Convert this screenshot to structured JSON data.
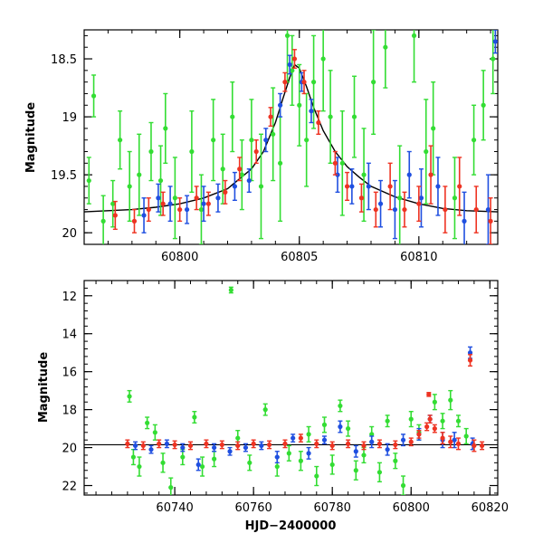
{
  "colors": {
    "green": "#33dd33",
    "blue": "#1f4fe0",
    "red": "#ee3322",
    "model": "#000000"
  },
  "chart_data": [
    {
      "type": "scatter",
      "title": "",
      "xlabel": "",
      "ylabel": "Magnitude",
      "xlim": [
        60796,
        60813.3
      ],
      "ylim": [
        20.1,
        18.25
      ],
      "y_inverted": true,
      "xticks_major": [
        60800,
        60805,
        60810
      ],
      "xticks_minor_step": 1,
      "yticks_major": [
        18.5,
        19,
        19.5,
        20
      ],
      "yticks_minor_step": 0.1,
      "grid": false,
      "model_curve": {
        "name": "",
        "x": [
          60796,
          60797,
          60798,
          60799,
          60800,
          60801,
          60802,
          60803,
          60803.5,
          60804,
          60804.3,
          60804.6,
          60804.8,
          60805,
          60805.3,
          60805.6,
          60806,
          60806.5,
          60807,
          60807.5,
          60808,
          60809,
          60810,
          60811,
          60812,
          60813.3
        ],
        "y": [
          19.82,
          19.81,
          19.8,
          19.78,
          19.75,
          19.7,
          19.62,
          19.45,
          19.3,
          19.05,
          18.85,
          18.66,
          18.55,
          18.58,
          18.74,
          18.92,
          19.12,
          19.3,
          19.43,
          19.52,
          19.6,
          19.69,
          19.75,
          19.79,
          19.81,
          19.82
        ]
      },
      "series": [
        {
          "color": "green",
          "points": [
            [
              60796.2,
              19.55,
              0.2
            ],
            [
              60796.4,
              18.82,
              0.18
            ],
            [
              60796.8,
              19.9,
              0.22
            ],
            [
              60797.2,
              19.75,
              0.2
            ],
            [
              60797.5,
              19.2,
              0.25
            ],
            [
              60797.9,
              19.6,
              0.3
            ],
            [
              60798.3,
              19.5,
              0.35
            ],
            [
              60798.8,
              19.3,
              0.25
            ],
            [
              60799.2,
              19.55,
              0.3
            ],
            [
              60799.4,
              19.1,
              0.3
            ],
            [
              60799.8,
              19.7,
              0.35
            ],
            [
              60800.5,
              19.3,
              0.35
            ],
            [
              60800.9,
              19.8,
              0.3
            ],
            [
              60801.4,
              19.2,
              0.35
            ],
            [
              60801.8,
              19.45,
              0.3
            ],
            [
              60802.2,
              19.0,
              0.3
            ],
            [
              60802.6,
              19.5,
              0.3
            ],
            [
              60803.0,
              19.2,
              0.35
            ],
            [
              60803.4,
              19.6,
              0.45
            ],
            [
              60803.9,
              19.15,
              0.4
            ],
            [
              60804.2,
              19.4,
              0.5
            ],
            [
              60804.5,
              18.3,
              0.4
            ],
            [
              60804.7,
              18.6,
              0.3
            ],
            [
              60805.0,
              18.9,
              0.35
            ],
            [
              60805.3,
              19.2,
              0.4
            ],
            [
              60805.6,
              18.7,
              0.4
            ],
            [
              60806.0,
              18.5,
              0.45
            ],
            [
              60806.3,
              19.0,
              0.4
            ],
            [
              60806.8,
              19.4,
              0.45
            ],
            [
              60807.3,
              19.0,
              0.35
            ],
            [
              60807.7,
              19.5,
              0.4
            ],
            [
              60808.1,
              18.7,
              0.45
            ],
            [
              60808.6,
              18.4,
              0.35
            ],
            [
              60809.2,
              19.7,
              0.45
            ],
            [
              60809.8,
              18.3,
              0.4
            ],
            [
              60810.3,
              19.3,
              0.45
            ],
            [
              60810.6,
              19.1,
              0.4
            ],
            [
              60811.5,
              19.7,
              0.35
            ],
            [
              60812.3,
              19.2,
              0.3
            ],
            [
              60812.7,
              18.9,
              0.3
            ],
            [
              60813.1,
              18.5,
              0.3
            ]
          ]
        },
        {
          "color": "blue",
          "points": [
            [
              60798.5,
              19.85,
              0.15
            ],
            [
              60799.1,
              19.7,
              0.12
            ],
            [
              60799.6,
              19.75,
              0.15
            ],
            [
              60800.3,
              19.8,
              0.12
            ],
            [
              60801.0,
              19.75,
              0.15
            ],
            [
              60801.6,
              19.7,
              0.12
            ],
            [
              60802.3,
              19.6,
              0.12
            ],
            [
              60802.9,
              19.55,
              0.1
            ],
            [
              60803.6,
              19.2,
              0.1
            ],
            [
              60804.2,
              18.9,
              0.1
            ],
            [
              60804.6,
              18.55,
              0.08
            ],
            [
              60805.1,
              18.7,
              0.08
            ],
            [
              60805.5,
              18.95,
              0.1
            ],
            [
              60806.6,
              19.5,
              0.15
            ],
            [
              60807.2,
              19.6,
              0.15
            ],
            [
              60807.9,
              19.6,
              0.2
            ],
            [
              60808.4,
              19.75,
              0.2
            ],
            [
              60809.0,
              19.8,
              0.25
            ],
            [
              60809.6,
              19.5,
              0.2
            ],
            [
              60810.1,
              19.7,
              0.25
            ],
            [
              60810.8,
              19.6,
              0.25
            ],
            [
              60811.9,
              19.9,
              0.25
            ],
            [
              60812.9,
              19.8,
              0.3
            ],
            [
              60813.2,
              18.35,
              0.1
            ]
          ]
        },
        {
          "color": "red",
          "points": [
            [
              60797.3,
              19.85,
              0.12
            ],
            [
              60798.1,
              19.9,
              0.1
            ],
            [
              60798.7,
              19.8,
              0.1
            ],
            [
              60799.3,
              19.75,
              0.1
            ],
            [
              60800.0,
              19.8,
              0.1
            ],
            [
              60800.7,
              19.7,
              0.1
            ],
            [
              60801.2,
              19.75,
              0.1
            ],
            [
              60801.9,
              19.65,
              0.1
            ],
            [
              60802.5,
              19.45,
              0.1
            ],
            [
              60803.2,
              19.3,
              0.1
            ],
            [
              60803.8,
              19.0,
              0.08
            ],
            [
              60804.4,
              18.7,
              0.08
            ],
            [
              60804.8,
              18.5,
              0.08
            ],
            [
              60805.2,
              18.7,
              0.1
            ],
            [
              60805.8,
              19.05,
              0.1
            ],
            [
              60806.5,
              19.4,
              0.1
            ],
            [
              60807.0,
              19.6,
              0.12
            ],
            [
              60807.6,
              19.7,
              0.12
            ],
            [
              60808.2,
              19.8,
              0.15
            ],
            [
              60808.8,
              19.6,
              0.2
            ],
            [
              60809.4,
              19.8,
              0.15
            ],
            [
              60810.0,
              19.75,
              0.15
            ],
            [
              60810.5,
              19.5,
              0.25
            ],
            [
              60811.1,
              19.8,
              0.2
            ],
            [
              60811.7,
              19.6,
              0.25
            ],
            [
              60812.4,
              19.8,
              0.2
            ],
            [
              60813.0,
              19.9,
              0.2
            ]
          ]
        }
      ]
    },
    {
      "type": "scatter",
      "title": "",
      "xlabel": "HJD−2400000",
      "ylabel": "Magnitude",
      "xlim": [
        60717,
        60822
      ],
      "ylim": [
        22.5,
        11.2
      ],
      "y_inverted": true,
      "xticks_major": [
        60740,
        60760,
        60780,
        60800,
        60820
      ],
      "xticks_minor_step": 4,
      "yticks_major": [
        12,
        14,
        16,
        18,
        20,
        22
      ],
      "yticks_minor_step": 0.4,
      "grid": false,
      "reference_line": {
        "y": 19.85
      },
      "series": [
        {
          "color": "green",
          "points": [
            [
              60728.5,
              17.3,
              0.3
            ],
            [
              60729.5,
              20.5,
              0.4
            ],
            [
              60731,
              21.0,
              0.5
            ],
            [
              60733,
              18.7,
              0.3
            ],
            [
              60735,
              19.2,
              0.4
            ],
            [
              60737,
              20.8,
              0.5
            ],
            [
              60739,
              22.1,
              0.5
            ],
            [
              60742,
              20.5,
              0.4
            ],
            [
              60745,
              18.4,
              0.3
            ],
            [
              60747,
              21.0,
              0.5
            ],
            [
              60750,
              20.6,
              0.4
            ],
            [
              60754.3,
              11.7,
              0.15
            ],
            [
              60756,
              19.5,
              0.4
            ],
            [
              60759,
              20.8,
              0.4
            ],
            [
              60763,
              18.0,
              0.3
            ],
            [
              60766,
              21.0,
              0.5
            ],
            [
              60769,
              20.3,
              0.4
            ],
            [
              60772,
              20.7,
              0.5
            ],
            [
              60774,
              19.3,
              0.4
            ],
            [
              60776,
              21.5,
              0.5
            ],
            [
              60778,
              18.8,
              0.4
            ],
            [
              60780,
              20.9,
              0.5
            ],
            [
              60782,
              17.8,
              0.3
            ],
            [
              60784,
              19.0,
              0.4
            ],
            [
              60786,
              21.2,
              0.5
            ],
            [
              60788,
              20.4,
              0.4
            ],
            [
              60790,
              19.3,
              0.4
            ],
            [
              60792,
              21.3,
              0.5
            ],
            [
              60794,
              18.6,
              0.3
            ],
            [
              60796,
              20.7,
              0.4
            ],
            [
              60798,
              22.0,
              0.5
            ],
            [
              60800,
              18.5,
              0.4
            ],
            [
              60802,
              19.2,
              0.4
            ],
            [
              60806,
              17.6,
              0.4
            ],
            [
              60808,
              18.6,
              0.4
            ],
            [
              60810,
              17.5,
              0.5
            ],
            [
              60812,
              18.6,
              0.3
            ],
            [
              60814,
              19.4,
              0.4
            ]
          ]
        },
        {
          "color": "blue",
          "points": [
            [
              60730,
              19.9,
              0.2
            ],
            [
              60734,
              20.1,
              0.2
            ],
            [
              60738,
              19.8,
              0.2
            ],
            [
              60742,
              20.0,
              0.2
            ],
            [
              60746,
              20.9,
              0.3
            ],
            [
              60750,
              20.0,
              0.2
            ],
            [
              60754,
              20.2,
              0.2
            ],
            [
              60758,
              20.0,
              0.2
            ],
            [
              60762,
              19.9,
              0.2
            ],
            [
              60766,
              20.5,
              0.3
            ],
            [
              60770,
              19.5,
              0.2
            ],
            [
              60774,
              20.3,
              0.3
            ],
            [
              60778,
              19.6,
              0.2
            ],
            [
              60782,
              18.9,
              0.3
            ],
            [
              60786,
              20.2,
              0.3
            ],
            [
              60790,
              19.7,
              0.3
            ],
            [
              60794,
              20.1,
              0.3
            ],
            [
              60798,
              19.6,
              0.3
            ],
            [
              60802,
              19.3,
              0.3
            ],
            [
              60804.8,
              18.5,
              0.2
            ],
            [
              60808,
              19.6,
              0.4
            ],
            [
              60811,
              19.6,
              0.4
            ],
            [
              60815,
              15.0,
              0.3
            ],
            [
              60815.6,
              19.8,
              0.3
            ]
          ]
        },
        {
          "color": "red",
          "points": [
            [
              60728,
              19.8,
              0.2
            ],
            [
              60732,
              19.9,
              0.2
            ],
            [
              60736,
              19.8,
              0.2
            ],
            [
              60740,
              19.85,
              0.2
            ],
            [
              60744,
              19.9,
              0.2
            ],
            [
              60748,
              19.8,
              0.2
            ],
            [
              60752,
              19.85,
              0.2
            ],
            [
              60756,
              19.9,
              0.2
            ],
            [
              60760,
              19.8,
              0.2
            ],
            [
              60764,
              19.85,
              0.2
            ],
            [
              60768,
              19.8,
              0.2
            ],
            [
              60772,
              19.5,
              0.2
            ],
            [
              60776,
              19.8,
              0.2
            ],
            [
              60780,
              19.9,
              0.2
            ],
            [
              60784,
              19.8,
              0.2
            ],
            [
              60788,
              19.9,
              0.2
            ],
            [
              60792,
              19.8,
              0.2
            ],
            [
              60796,
              19.85,
              0.2
            ],
            [
              60800,
              19.7,
              0.2
            ],
            [
              60802,
              19.3,
              0.2
            ],
            [
              60804,
              18.9,
              0.2
            ],
            [
              60804.8,
              18.5,
              0.2
            ],
            [
              60806,
              19.0,
              0.2
            ],
            [
              60808,
              19.5,
              0.3
            ],
            [
              60810,
              19.7,
              0.3
            ],
            [
              60812,
              19.8,
              0.3
            ],
            [
              60815,
              15.4,
              0.3
            ],
            [
              60816,
              19.9,
              0.3
            ],
            [
              60818,
              19.9,
              0.2
            ],
            [
              60804.5,
              17.2,
              0.1
            ]
          ]
        }
      ]
    }
  ]
}
